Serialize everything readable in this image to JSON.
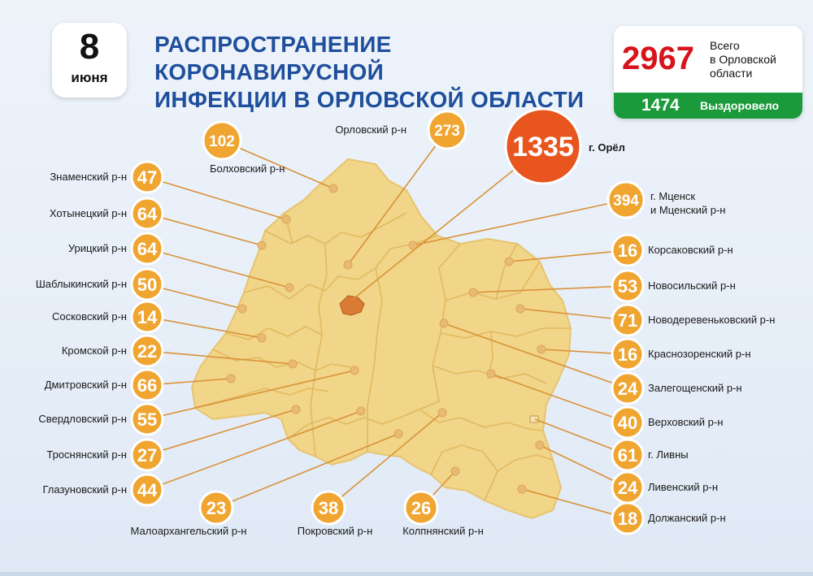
{
  "date": {
    "day": "8",
    "month": "июня"
  },
  "title": {
    "line1": "РАСПРОСТРАНЕНИЕ КОРОНАВИРУСНОЙ",
    "line2": "ИНФЕКЦИИ В ОРЛОВСКОЙ ОБЛАСТИ"
  },
  "total": {
    "value": "2967",
    "label_line1": "Всего",
    "label_line2": "в Орловской",
    "label_line3": "области"
  },
  "recovered": {
    "value": "1474",
    "label": "Выздоровело"
  },
  "colors": {
    "bubble": "#f0a530",
    "orel_bubble": "#e8551e",
    "map_fill": "#f1d588",
    "title": "#1f4f9c",
    "total": "#d7141b",
    "recovered": "#1a9a3a"
  },
  "districts": [
    {
      "id": "bolkhov",
      "name": "Болховский р-н",
      "value": "102"
    },
    {
      "id": "orlovsky",
      "name": "Орловский р-н",
      "value": "273"
    },
    {
      "id": "orel",
      "name": "г. Орёл",
      "value": "1335"
    },
    {
      "id": "znamensky",
      "name": "Знаменский р-н",
      "value": "47"
    },
    {
      "id": "khotynets",
      "name": "Хотынецкий р-н",
      "value": "64"
    },
    {
      "id": "uritsky",
      "name": "Урицкий р-н",
      "value": "64"
    },
    {
      "id": "shablykino",
      "name": "Шаблыкинский р-н",
      "value": "50"
    },
    {
      "id": "sosk",
      "name": "Сосковский р-н",
      "value": "14"
    },
    {
      "id": "kromy",
      "name": "Кромской р-н",
      "value": "22"
    },
    {
      "id": "dmitrovsk",
      "name": "Дмитровский р-н",
      "value": "66"
    },
    {
      "id": "sverdlovsk",
      "name": "Свердловский р-н",
      "value": "55"
    },
    {
      "id": "trosna",
      "name": "Троснянский р-н",
      "value": "27"
    },
    {
      "id": "glazunovka",
      "name": "Глазуновский р-н",
      "value": "44"
    },
    {
      "id": "maloarkh",
      "name": "Малоархангельский р-н",
      "value": "23"
    },
    {
      "id": "pokrovsk",
      "name": "Покровский р-н",
      "value": "38"
    },
    {
      "id": "kolpny",
      "name": "Колпнянский р-н",
      "value": "26"
    },
    {
      "id": "mtsensk",
      "name": "г. Мценск и Мценский р-н",
      "name_line1": "г. Мценск",
      "name_line2": "и Мценский р-н",
      "value": "394"
    },
    {
      "id": "korsakovo",
      "name": "Корсаковский р-н",
      "value": "16"
    },
    {
      "id": "novosil",
      "name": "Новосильский р-н",
      "value": "53"
    },
    {
      "id": "novoderev",
      "name": "Новодеревеньковский р-н",
      "value": "71"
    },
    {
      "id": "krasnaya",
      "name": "Краснозоренский р-н",
      "value": "16"
    },
    {
      "id": "zaleg",
      "name": "Залегощенский р-н",
      "value": "24"
    },
    {
      "id": "verkhovye",
      "name": "Верховский р-н",
      "value": "40"
    },
    {
      "id": "livny_city",
      "name": "г. Ливны",
      "value": "61"
    },
    {
      "id": "livny",
      "name": "Ливенский р-н",
      "value": "24"
    },
    {
      "id": "dolzhansk",
      "name": "Должанский р-н",
      "value": "18"
    }
  ]
}
